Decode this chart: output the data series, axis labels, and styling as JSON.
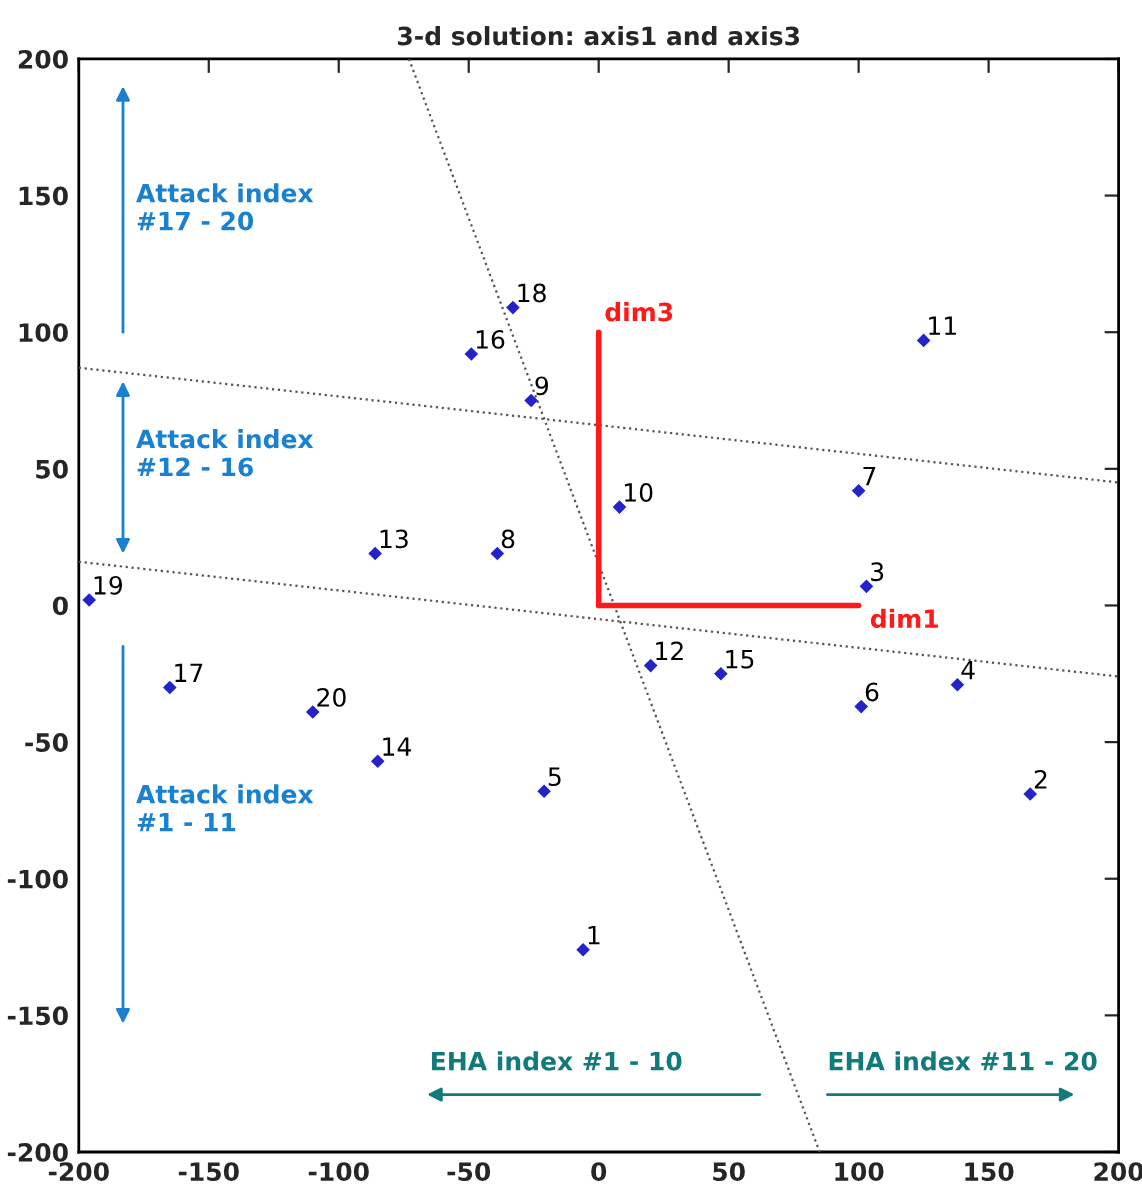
{
  "chart_data": {
    "type": "scatter",
    "title": "3-d solution: axis1 and axis3",
    "xlim": [
      -200,
      200
    ],
    "ylim": [
      -200,
      200
    ],
    "xticks": [
      -200,
      -150,
      -100,
      -50,
      0,
      50,
      100,
      150,
      200
    ],
    "yticks": [
      -200,
      -150,
      -100,
      -50,
      0,
      50,
      100,
      150,
      200
    ],
    "grid": false,
    "series": [
      {
        "name": "1",
        "color": "#2323c8",
        "marker": "diamond",
        "x": [
          -6
        ],
        "values": [
          -126
        ]
      },
      {
        "name": "2",
        "color": "#2323c8",
        "marker": "diamond",
        "x": [
          166
        ],
        "values": [
          -69
        ]
      },
      {
        "name": "3",
        "color": "#2323c8",
        "marker": "diamond",
        "x": [
          103
        ],
        "values": [
          7
        ]
      },
      {
        "name": "4",
        "color": "#2323c8",
        "marker": "diamond",
        "x": [
          138
        ],
        "values": [
          -29
        ]
      },
      {
        "name": "5",
        "color": "#2323c8",
        "marker": "diamond",
        "x": [
          -21
        ],
        "values": [
          -68
        ]
      },
      {
        "name": "6",
        "color": "#2323c8",
        "marker": "diamond",
        "x": [
          101
        ],
        "values": [
          -37
        ]
      },
      {
        "name": "7",
        "color": "#2323c8",
        "marker": "diamond",
        "x": [
          100
        ],
        "values": [
          42
        ]
      },
      {
        "name": "8",
        "color": "#2323c8",
        "marker": "diamond",
        "x": [
          -39
        ],
        "values": [
          19
        ]
      },
      {
        "name": "9",
        "color": "#2323c8",
        "marker": "diamond",
        "x": [
          -26
        ],
        "values": [
          75
        ]
      },
      {
        "name": "10",
        "color": "#2323c8",
        "marker": "diamond",
        "x": [
          8
        ],
        "values": [
          36
        ]
      },
      {
        "name": "11",
        "color": "#2323c8",
        "marker": "diamond",
        "x": [
          125
        ],
        "values": [
          97
        ]
      },
      {
        "name": "12",
        "color": "#2323c8",
        "marker": "diamond",
        "x": [
          20
        ],
        "values": [
          -22
        ]
      },
      {
        "name": "13",
        "color": "#2323c8",
        "marker": "diamond",
        "x": [
          -86
        ],
        "values": [
          19
        ]
      },
      {
        "name": "14",
        "color": "#2323c8",
        "marker": "diamond",
        "x": [
          -85
        ],
        "values": [
          -57
        ]
      },
      {
        "name": "15",
        "color": "#2323c8",
        "marker": "diamond",
        "x": [
          47
        ],
        "values": [
          -25
        ]
      },
      {
        "name": "16",
        "color": "#2323c8",
        "marker": "diamond",
        "x": [
          -49
        ],
        "values": [
          92
        ]
      },
      {
        "name": "17",
        "color": "#2323c8",
        "marker": "diamond",
        "x": [
          -165
        ],
        "values": [
          -30
        ]
      },
      {
        "name": "18",
        "color": "#2323c8",
        "marker": "diamond",
        "x": [
          -33
        ],
        "values": [
          109
        ]
      },
      {
        "name": "19",
        "color": "#2323c8",
        "marker": "diamond",
        "x": [
          -196
        ],
        "values": [
          2
        ]
      },
      {
        "name": "20",
        "color": "#2323c8",
        "marker": "diamond",
        "x": [
          -110
        ],
        "values": [
          -39
        ]
      },
      {
        "type": "line",
        "color": "#555555",
        "line_style": "dotted",
        "x": [
          -200,
          200
        ],
        "values": [
          87,
          45
        ]
      },
      {
        "type": "line",
        "color": "#555555",
        "line_style": "dotted",
        "x": [
          -200,
          200
        ],
        "values": [
          16,
          -26
        ]
      },
      {
        "type": "line",
        "color": "#555555",
        "line_style": "dotted",
        "x": [
          -73,
          85
        ],
        "values": [
          200,
          -200
        ]
      },
      {
        "type": "line",
        "name": "dim1",
        "color": "#ff1a1a",
        "line_style": "solid",
        "x": [
          0,
          100
        ],
        "values": [
          0,
          0
        ]
      },
      {
        "type": "line",
        "name": "dim3",
        "color": "#ff1a1a",
        "line_style": "solid",
        "x": [
          0,
          0
        ],
        "values": [
          0,
          100
        ]
      }
    ],
    "annotations": [
      "Attack index\n#17 - 20",
      "Attack index\n#12 - 16",
      "Attack index\n#1 - 11",
      "EHA index #1 - 10",
      "EHA index #11 - 20"
    ]
  }
}
